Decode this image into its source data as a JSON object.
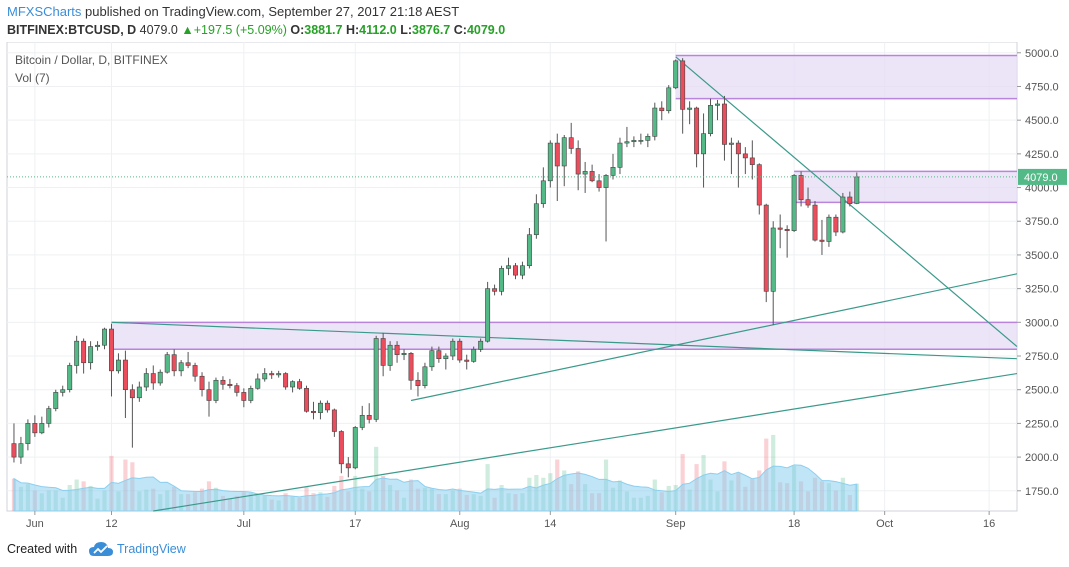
{
  "header": {
    "publisher": "MFXSCharts",
    "published_text": "published on TradingView.com, September 27, 2017 21:18 AEST",
    "symbol": "BITFINEX:BTCUSD, D",
    "last": "4079.0",
    "change_arrow": "▲",
    "change": "+197.5 (+5.09%)",
    "o_label": "O:",
    "o_value": "3881.7",
    "h_label": "H:",
    "h_value": "4112.0",
    "l_label": "L:",
    "l_value": "3876.7",
    "c_label": "C:",
    "c_value": "4079.0"
  },
  "legend": {
    "title": "Bitcoin / Dollar, D, BITFINEX",
    "vol": "Vol (7)"
  },
  "footer": {
    "created": "Created with",
    "brand": "TradingView"
  },
  "colors": {
    "up": "#53b987",
    "down": "#eb4d5c",
    "wick": "#555555",
    "zone_fill": "#e6dcf4",
    "zone_border": "#b984dc",
    "trend": "#3a9a8a",
    "volume_area": "#8ccfef",
    "accent": "#3a8ed8"
  },
  "chart_data": {
    "type": "candlestick",
    "title": "Bitcoin / Dollar, D, BITFINEX",
    "ylim": [
      1600,
      5080
    ],
    "y_ticks": [
      1750,
      2000,
      2250,
      2500,
      2750,
      3000,
      3250,
      3500,
      3750,
      4000,
      4250,
      4500,
      4750,
      5000
    ],
    "y_tick_labels": [
      "1750.0",
      "2000.0",
      "2250.0",
      "2500.0",
      "2750.0",
      "3000.0",
      "3250.0",
      "3500.0",
      "3750.0",
      "4000.0",
      "4250.0",
      "4500.0",
      "4750.0",
      "5000.0"
    ],
    "x_tick_labels": [
      "Jun",
      "12",
      "Jul",
      "17",
      "Aug",
      "14",
      "Sep",
      "18",
      "Oct",
      "16"
    ],
    "x_tick_dates": [
      "2017-06-01",
      "2017-06-12",
      "2017-07-01",
      "2017-07-17",
      "2017-08-01",
      "2017-08-14",
      "2017-09-01",
      "2017-09-18",
      "2017-10-01",
      "2017-10-16"
    ],
    "x_range": [
      "2017-05-28",
      "2017-10-20"
    ],
    "last_price_label": "4079.0",
    "candles": [
      {
        "date": "2017-05-29",
        "o": 2100,
        "h": 2250,
        "l": 1960,
        "c": 2000
      },
      {
        "date": "2017-05-30",
        "o": 2000,
        "h": 2150,
        "l": 1950,
        "c": 2100
      },
      {
        "date": "2017-05-31",
        "o": 2100,
        "h": 2280,
        "l": 2050,
        "c": 2250
      },
      {
        "date": "2017-06-01",
        "o": 2250,
        "h": 2310,
        "l": 2150,
        "c": 2180
      },
      {
        "date": "2017-06-02",
        "o": 2180,
        "h": 2300,
        "l": 2170,
        "c": 2250
      },
      {
        "date": "2017-06-03",
        "o": 2250,
        "h": 2380,
        "l": 2220,
        "c": 2360
      },
      {
        "date": "2017-06-04",
        "o": 2360,
        "h": 2500,
        "l": 2340,
        "c": 2480
      },
      {
        "date": "2017-06-05",
        "o": 2480,
        "h": 2530,
        "l": 2450,
        "c": 2500
      },
      {
        "date": "2017-06-06",
        "o": 2500,
        "h": 2700,
        "l": 2480,
        "c": 2680
      },
      {
        "date": "2017-06-07",
        "o": 2680,
        "h": 2900,
        "l": 2620,
        "c": 2860
      },
      {
        "date": "2017-06-08",
        "o": 2860,
        "h": 2880,
        "l": 2620,
        "c": 2700
      },
      {
        "date": "2017-06-09",
        "o": 2700,
        "h": 2860,
        "l": 2650,
        "c": 2820
      },
      {
        "date": "2017-06-10",
        "o": 2820,
        "h": 2860,
        "l": 2790,
        "c": 2830
      },
      {
        "date": "2017-06-11",
        "o": 2830,
        "h": 2960,
        "l": 2800,
        "c": 2950
      },
      {
        "date": "2017-06-12",
        "o": 2950,
        "h": 2990,
        "l": 2450,
        "c": 2640
      },
      {
        "date": "2017-06-13",
        "o": 2640,
        "h": 2770,
        "l": 2620,
        "c": 2720
      },
      {
        "date": "2017-06-14",
        "o": 2720,
        "h": 2790,
        "l": 2290,
        "c": 2500
      },
      {
        "date": "2017-06-15",
        "o": 2500,
        "h": 2540,
        "l": 2070,
        "c": 2440
      },
      {
        "date": "2017-06-16",
        "o": 2440,
        "h": 2560,
        "l": 2410,
        "c": 2520
      },
      {
        "date": "2017-06-17",
        "o": 2520,
        "h": 2660,
        "l": 2490,
        "c": 2620
      },
      {
        "date": "2017-06-18",
        "o": 2620,
        "h": 2680,
        "l": 2500,
        "c": 2550
      },
      {
        "date": "2017-06-19",
        "o": 2550,
        "h": 2650,
        "l": 2530,
        "c": 2630
      },
      {
        "date": "2017-06-20",
        "o": 2630,
        "h": 2780,
        "l": 2620,
        "c": 2760
      },
      {
        "date": "2017-06-21",
        "o": 2760,
        "h": 2800,
        "l": 2600,
        "c": 2640
      },
      {
        "date": "2017-06-22",
        "o": 2640,
        "h": 2720,
        "l": 2600,
        "c": 2700
      },
      {
        "date": "2017-06-23",
        "o": 2700,
        "h": 2780,
        "l": 2660,
        "c": 2680
      },
      {
        "date": "2017-06-24",
        "o": 2680,
        "h": 2700,
        "l": 2560,
        "c": 2600
      },
      {
        "date": "2017-06-25",
        "o": 2600,
        "h": 2630,
        "l": 2450,
        "c": 2500
      },
      {
        "date": "2017-06-26",
        "o": 2500,
        "h": 2560,
        "l": 2300,
        "c": 2420
      },
      {
        "date": "2017-06-27",
        "o": 2420,
        "h": 2590,
        "l": 2400,
        "c": 2570
      },
      {
        "date": "2017-06-28",
        "o": 2570,
        "h": 2600,
        "l": 2500,
        "c": 2540
      },
      {
        "date": "2017-06-29",
        "o": 2540,
        "h": 2580,
        "l": 2510,
        "c": 2530
      },
      {
        "date": "2017-06-30",
        "o": 2530,
        "h": 2550,
        "l": 2450,
        "c": 2480
      },
      {
        "date": "2017-07-01",
        "o": 2480,
        "h": 2510,
        "l": 2370,
        "c": 2420
      },
      {
        "date": "2017-07-02",
        "o": 2420,
        "h": 2530,
        "l": 2400,
        "c": 2510
      },
      {
        "date": "2017-07-03",
        "o": 2510,
        "h": 2620,
        "l": 2500,
        "c": 2580
      },
      {
        "date": "2017-07-04",
        "o": 2580,
        "h": 2660,
        "l": 2560,
        "c": 2620
      },
      {
        "date": "2017-07-05",
        "o": 2620,
        "h": 2640,
        "l": 2580,
        "c": 2610
      },
      {
        "date": "2017-07-06",
        "o": 2610,
        "h": 2640,
        "l": 2590,
        "c": 2620
      },
      {
        "date": "2017-07-07",
        "o": 2620,
        "h": 2630,
        "l": 2500,
        "c": 2520
      },
      {
        "date": "2017-07-08",
        "o": 2520,
        "h": 2570,
        "l": 2480,
        "c": 2560
      },
      {
        "date": "2017-07-09",
        "o": 2560,
        "h": 2580,
        "l": 2500,
        "c": 2510
      },
      {
        "date": "2017-07-10",
        "o": 2510,
        "h": 2530,
        "l": 2330,
        "c": 2340
      },
      {
        "date": "2017-07-11",
        "o": 2340,
        "h": 2410,
        "l": 2280,
        "c": 2330
      },
      {
        "date": "2017-07-12",
        "o": 2330,
        "h": 2420,
        "l": 2280,
        "c": 2400
      },
      {
        "date": "2017-07-13",
        "o": 2400,
        "h": 2420,
        "l": 2330,
        "c": 2350
      },
      {
        "date": "2017-07-14",
        "o": 2350,
        "h": 2360,
        "l": 2150,
        "c": 2190
      },
      {
        "date": "2017-07-15",
        "o": 2190,
        "h": 2200,
        "l": 1880,
        "c": 1950
      },
      {
        "date": "2017-07-16",
        "o": 1950,
        "h": 2000,
        "l": 1850,
        "c": 1920
      },
      {
        "date": "2017-07-17",
        "o": 1920,
        "h": 2230,
        "l": 1910,
        "c": 2220
      },
      {
        "date": "2017-07-18",
        "o": 2220,
        "h": 2380,
        "l": 2200,
        "c": 2310
      },
      {
        "date": "2017-07-19",
        "o": 2310,
        "h": 2400,
        "l": 2250,
        "c": 2280
      },
      {
        "date": "2017-07-20",
        "o": 2280,
        "h": 2900,
        "l": 2260,
        "c": 2880
      },
      {
        "date": "2017-07-21",
        "o": 2880,
        "h": 2920,
        "l": 2600,
        "c": 2680
      },
      {
        "date": "2017-07-22",
        "o": 2680,
        "h": 2860,
        "l": 2640,
        "c": 2830
      },
      {
        "date": "2017-07-23",
        "o": 2830,
        "h": 2860,
        "l": 2700,
        "c": 2760
      },
      {
        "date": "2017-07-24",
        "o": 2760,
        "h": 2800,
        "l": 2720,
        "c": 2770
      },
      {
        "date": "2017-07-25",
        "o": 2770,
        "h": 2780,
        "l": 2500,
        "c": 2570
      },
      {
        "date": "2017-07-26",
        "o": 2570,
        "h": 2630,
        "l": 2450,
        "c": 2530
      },
      {
        "date": "2017-07-27",
        "o": 2530,
        "h": 2700,
        "l": 2510,
        "c": 2670
      },
      {
        "date": "2017-07-28",
        "o": 2670,
        "h": 2820,
        "l": 2640,
        "c": 2790
      },
      {
        "date": "2017-07-29",
        "o": 2790,
        "h": 2820,
        "l": 2700,
        "c": 2730
      },
      {
        "date": "2017-07-30",
        "o": 2730,
        "h": 2770,
        "l": 2650,
        "c": 2750
      },
      {
        "date": "2017-07-31",
        "o": 2750,
        "h": 2880,
        "l": 2720,
        "c": 2860
      },
      {
        "date": "2017-08-01",
        "o": 2860,
        "h": 2880,
        "l": 2700,
        "c": 2720
      },
      {
        "date": "2017-08-02",
        "o": 2720,
        "h": 2760,
        "l": 2650,
        "c": 2710
      },
      {
        "date": "2017-08-03",
        "o": 2710,
        "h": 2820,
        "l": 2700,
        "c": 2800
      },
      {
        "date": "2017-08-04",
        "o": 2800,
        "h": 2880,
        "l": 2780,
        "c": 2860
      },
      {
        "date": "2017-08-05",
        "o": 2860,
        "h": 3300,
        "l": 2850,
        "c": 3250
      },
      {
        "date": "2017-08-06",
        "o": 3250,
        "h": 3280,
        "l": 3200,
        "c": 3230
      },
      {
        "date": "2017-08-07",
        "o": 3230,
        "h": 3420,
        "l": 3200,
        "c": 3400
      },
      {
        "date": "2017-08-08",
        "o": 3400,
        "h": 3480,
        "l": 3350,
        "c": 3420
      },
      {
        "date": "2017-08-09",
        "o": 3420,
        "h": 3440,
        "l": 3320,
        "c": 3350
      },
      {
        "date": "2017-08-10",
        "o": 3350,
        "h": 3450,
        "l": 3320,
        "c": 3420
      },
      {
        "date": "2017-08-11",
        "o": 3420,
        "h": 3700,
        "l": 3400,
        "c": 3650
      },
      {
        "date": "2017-08-12",
        "o": 3650,
        "h": 3950,
        "l": 3620,
        "c": 3880
      },
      {
        "date": "2017-08-13",
        "o": 3880,
        "h": 4150,
        "l": 3850,
        "c": 4050
      },
      {
        "date": "2017-08-14",
        "o": 4050,
        "h": 4350,
        "l": 4000,
        "c": 4330
      },
      {
        "date": "2017-08-15",
        "o": 4330,
        "h": 4400,
        "l": 3900,
        "c": 4160
      },
      {
        "date": "2017-08-16",
        "o": 4160,
        "h": 4390,
        "l": 4010,
        "c": 4370
      },
      {
        "date": "2017-08-17",
        "o": 4370,
        "h": 4480,
        "l": 4250,
        "c": 4290
      },
      {
        "date": "2017-08-18",
        "o": 4290,
        "h": 4350,
        "l": 3980,
        "c": 4100
      },
      {
        "date": "2017-08-19",
        "o": 4100,
        "h": 4190,
        "l": 3960,
        "c": 4120
      },
      {
        "date": "2017-08-20",
        "o": 4120,
        "h": 4170,
        "l": 4040,
        "c": 4050
      },
      {
        "date": "2017-08-21",
        "o": 4050,
        "h": 4100,
        "l": 3970,
        "c": 4000
      },
      {
        "date": "2017-08-22",
        "o": 4000,
        "h": 4100,
        "l": 3600,
        "c": 4090
      },
      {
        "date": "2017-08-23",
        "o": 4090,
        "h": 4250,
        "l": 4060,
        "c": 4150
      },
      {
        "date": "2017-08-24",
        "o": 4150,
        "h": 4370,
        "l": 4100,
        "c": 4330
      },
      {
        "date": "2017-08-25",
        "o": 4330,
        "h": 4450,
        "l": 4300,
        "c": 4340
      },
      {
        "date": "2017-08-26",
        "o": 4340,
        "h": 4380,
        "l": 4300,
        "c": 4350
      },
      {
        "date": "2017-08-27",
        "o": 4350,
        "h": 4400,
        "l": 4320,
        "c": 4350
      },
      {
        "date": "2017-08-28",
        "o": 4350,
        "h": 4400,
        "l": 4300,
        "c": 4380
      },
      {
        "date": "2017-08-29",
        "o": 4380,
        "h": 4630,
        "l": 4350,
        "c": 4590
      },
      {
        "date": "2017-08-30",
        "o": 4590,
        "h": 4640,
        "l": 4500,
        "c": 4570
      },
      {
        "date": "2017-08-31",
        "o": 4570,
        "h": 4760,
        "l": 4550,
        "c": 4740
      },
      {
        "date": "2017-09-01",
        "o": 4740,
        "h": 4950,
        "l": 4730,
        "c": 4940
      },
      {
        "date": "2017-09-02",
        "o": 4940,
        "h": 4960,
        "l": 4400,
        "c": 4580
      },
      {
        "date": "2017-09-03",
        "o": 4580,
        "h": 4640,
        "l": 4470,
        "c": 4590
      },
      {
        "date": "2017-09-04",
        "o": 4590,
        "h": 4600,
        "l": 4150,
        "c": 4250
      },
      {
        "date": "2017-09-05",
        "o": 4250,
        "h": 4550,
        "l": 4000,
        "c": 4400
      },
      {
        "date": "2017-09-06",
        "o": 4400,
        "h": 4660,
        "l": 4380,
        "c": 4610
      },
      {
        "date": "2017-09-07",
        "o": 4610,
        "h": 4650,
        "l": 4500,
        "c": 4620
      },
      {
        "date": "2017-09-08",
        "o": 4620,
        "h": 4680,
        "l": 4200,
        "c": 4320
      },
      {
        "date": "2017-09-09",
        "o": 4320,
        "h": 4370,
        "l": 4100,
        "c": 4330
      },
      {
        "date": "2017-09-10",
        "o": 4330,
        "h": 4350,
        "l": 4000,
        "c": 4250
      },
      {
        "date": "2017-09-11",
        "o": 4250,
        "h": 4300,
        "l": 4100,
        "c": 4220
      },
      {
        "date": "2017-09-12",
        "o": 4220,
        "h": 4350,
        "l": 4060,
        "c": 4170
      },
      {
        "date": "2017-09-13",
        "o": 4170,
        "h": 4180,
        "l": 3800,
        "c": 3870
      },
      {
        "date": "2017-09-14",
        "o": 3870,
        "h": 3880,
        "l": 3150,
        "c": 3230
      },
      {
        "date": "2017-09-15",
        "o": 3230,
        "h": 3750,
        "l": 2980,
        "c": 3700
      },
      {
        "date": "2017-09-16",
        "o": 3700,
        "h": 3800,
        "l": 3550,
        "c": 3690
      },
      {
        "date": "2017-09-17",
        "o": 3690,
        "h": 3720,
        "l": 3480,
        "c": 3680
      },
      {
        "date": "2017-09-18",
        "o": 3680,
        "h": 4100,
        "l": 3670,
        "c": 4090
      },
      {
        "date": "2017-09-19",
        "o": 4090,
        "h": 4120,
        "l": 3860,
        "c": 3910
      },
      {
        "date": "2017-09-20",
        "o": 3910,
        "h": 4000,
        "l": 3850,
        "c": 3870
      },
      {
        "date": "2017-09-21",
        "o": 3870,
        "h": 3900,
        "l": 3600,
        "c": 3610
      },
      {
        "date": "2017-09-22",
        "o": 3610,
        "h": 3760,
        "l": 3500,
        "c": 3600
      },
      {
        "date": "2017-09-23",
        "o": 3600,
        "h": 3800,
        "l": 3560,
        "c": 3780
      },
      {
        "date": "2017-09-24",
        "o": 3780,
        "h": 3800,
        "l": 3640,
        "c": 3670
      },
      {
        "date": "2017-09-25",
        "o": 3670,
        "h": 3960,
        "l": 3660,
        "c": 3930
      },
      {
        "date": "2017-09-26",
        "o": 3930,
        "h": 3970,
        "l": 3860,
        "c": 3880
      },
      {
        "date": "2017-09-27",
        "o": 3881.7,
        "h": 4112.0,
        "l": 3876.7,
        "c": 4079.0
      }
    ],
    "volume_notes": "Volume bars and Vol (7) moving average shown at the bottom of the price pane; no volume scale is printed.",
    "zones": [
      {
        "from": "2017-09-01",
        "to": "2017-10-20",
        "top": 4980,
        "bottom": 4660
      },
      {
        "from": "2017-09-18",
        "to": "2017-10-20",
        "top": 4120,
        "bottom": 3890
      },
      {
        "from": "2017-06-12",
        "to": "2017-10-20",
        "top": 3000,
        "bottom": 2800
      }
    ],
    "trendlines": [
      {
        "from": {
          "date": "2017-06-12",
          "price": 3000
        },
        "to": {
          "date": "2017-10-20",
          "price": 2730
        }
      },
      {
        "from": {
          "date": "2017-09-01",
          "price": 4970
        },
        "to": {
          "date": "2017-10-20",
          "price": 2820
        }
      },
      {
        "from": {
          "date": "2017-07-25",
          "price": 2420
        },
        "to": {
          "date": "2017-10-20",
          "price": 3360
        }
      },
      {
        "from": {
          "date": "2017-06-18",
          "price": 1600
        },
        "to": {
          "date": "2017-10-20",
          "price": 2620
        }
      }
    ]
  }
}
